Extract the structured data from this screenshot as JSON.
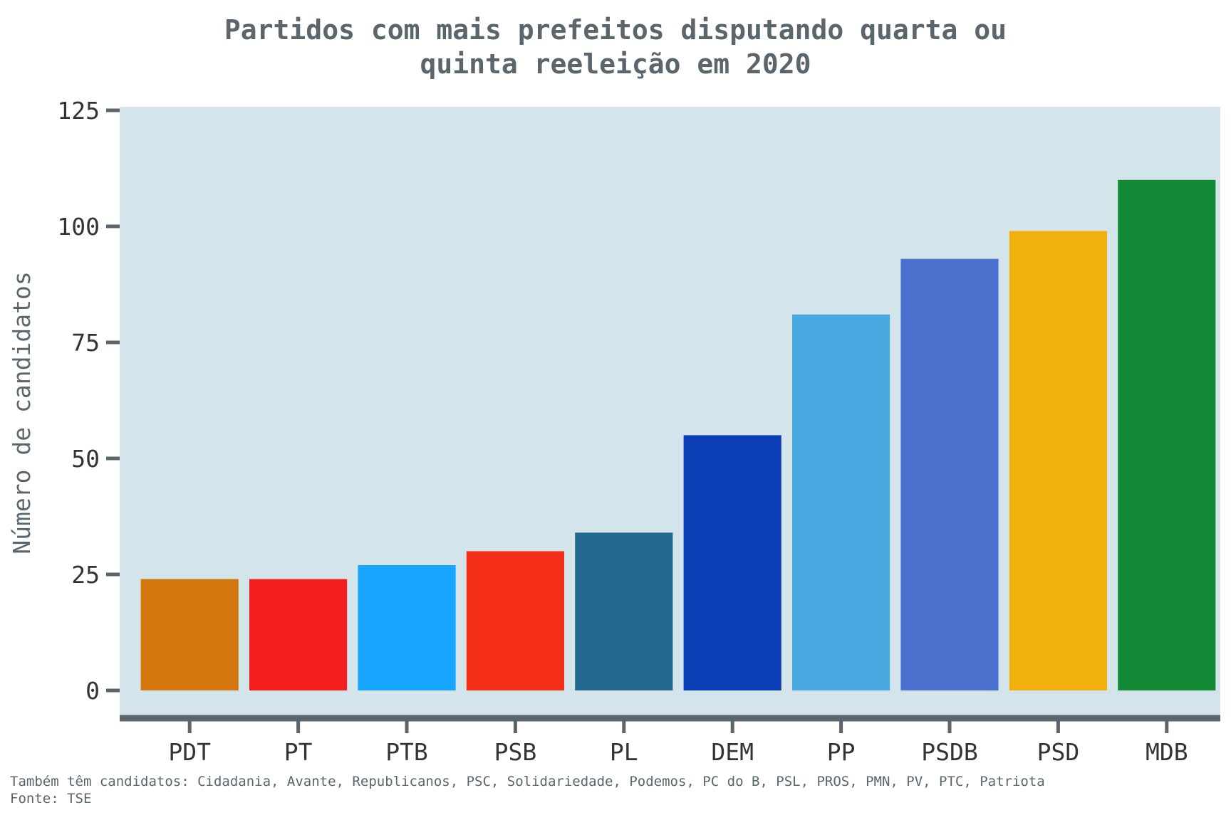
{
  "chart_data": {
    "type": "bar",
    "title_lines": [
      "Partidos com mais prefeitos disputando quarta ou",
      "quinta reeleição em 2020"
    ],
    "xlabel": "",
    "ylabel": "Número de candidatos",
    "ylim": [
      0,
      125
    ],
    "yticks": [
      0,
      25,
      50,
      75,
      100,
      125
    ],
    "categories": [
      "PDT",
      "PT",
      "PTB",
      "PSB",
      "PL",
      "DEM",
      "PP",
      "PSDB",
      "PSD",
      "MDB"
    ],
    "values": [
      24,
      24,
      27,
      30,
      34,
      55,
      81,
      93,
      99,
      110
    ],
    "colors": [
      "#d2760d",
      "#f41e1e",
      "#17a5ff",
      "#f52f17",
      "#22688f",
      "#0b3eb5",
      "#49a8df",
      "#4b71cf",
      "#f0b10e",
      "#138a35"
    ],
    "background_color": "#d4e4eb",
    "axis_color": "#5a666c",
    "grid": false,
    "legend": "none"
  },
  "footer": {
    "note": "Também têm candidatos: Cidadania, Avante, Republicanos, PSC, Solidariedade, Podemos, PC do B, PSL, PROS, PMN, PV, PTC, Patriota",
    "source": "Fonte: TSE"
  }
}
